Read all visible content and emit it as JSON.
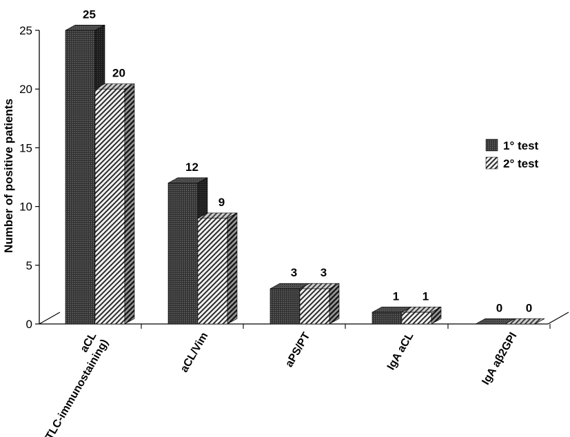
{
  "chart_data": {
    "type": "bar",
    "categories": [
      "aCL (TLC-immunostaining)",
      "aCL/Vim",
      "aPS/PT",
      "IgA aCL",
      "IgA aβ2GPI"
    ],
    "category_lines": [
      [
        "aCL",
        "(TLC-immunostaining)"
      ],
      [
        "aCL/Vim"
      ],
      [
        "aPS/PT"
      ],
      [
        "IgA aCL"
      ],
      [
        "IgA aβ2GPI"
      ]
    ],
    "series": [
      {
        "name": "1° test",
        "values": [
          25,
          12,
          3,
          1,
          0
        ],
        "color": "#3a3a3a",
        "pattern": "dense-dots"
      },
      {
        "name": "2° test",
        "values": [
          20,
          9,
          3,
          1,
          0
        ],
        "color": "#8a8a8a",
        "pattern": "diagonal-hatch"
      }
    ],
    "ylabel": "Number of positive patients",
    "xlabel": "",
    "ylim": [
      0,
      25
    ],
    "yticks": [
      0,
      5,
      10,
      15,
      20,
      25
    ],
    "grid": false,
    "legend_position": "right",
    "style": "3d-bars"
  }
}
